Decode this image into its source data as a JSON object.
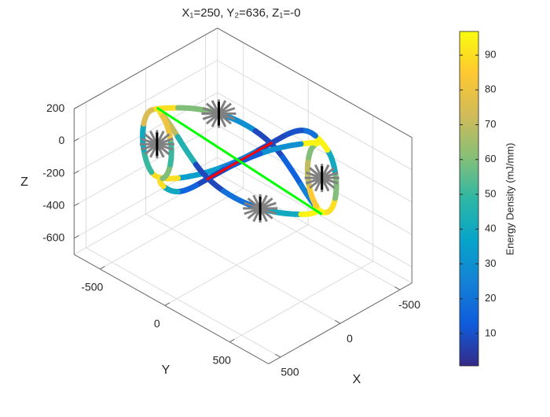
{
  "chart_data": {
    "type": "line3d",
    "title": "X₁=250, Y₂=636, Z₁=-0",
    "xlabel": "X",
    "ylabel": "Y",
    "zlabel": "Z",
    "xlim": [
      -600,
      600
    ],
    "ylim": [
      -700,
      800
    ],
    "zlim": [
      -700,
      200
    ],
    "xticks": [
      -500,
      0,
      500
    ],
    "yticks": [
      -500,
      0,
      500
    ],
    "zticks": [
      -600,
      -400,
      -200,
      0,
      200
    ],
    "grid": true,
    "curves": [
      {
        "x": [
          -25,
          -146,
          -248,
          -300,
          -248,
          -146,
          -25,
          -25,
          -25,
          -25,
          -25,
          -146,
          -248,
          -300,
          -248,
          -146,
          -25,
          -25,
          -25,
          -25
        ],
        "y": [
          -636,
          -424,
          -212,
          0,
          212,
          424,
          636,
          721,
          756,
          721,
          636,
          424,
          212,
          0,
          -212,
          -424,
          -636,
          -721,
          -756,
          -721
        ],
        "z": [
          -25,
          21,
          1,
          -67,
          -135,
          -155,
          -110,
          -44,
          115,
          274,
          340,
          265,
          123,
          -67,
          -257,
          -399,
          -475,
          -409,
          -250,
          -91
        ],
        "values": [
          90,
          60,
          30,
          8,
          15,
          25,
          95,
          90,
          60,
          40,
          95,
          20,
          10,
          8,
          25,
          35,
          90,
          50,
          40,
          75
        ]
      },
      {
        "x": [
          -25,
          96,
          198,
          250,
          198,
          96,
          -25,
          -25,
          -25,
          -25,
          -25,
          96,
          198,
          250,
          198,
          96,
          -25,
          -25,
          -25,
          -25
        ],
        "y": [
          -636,
          -424,
          -212,
          0,
          212,
          424,
          636,
          551,
          516,
          551,
          636,
          424,
          212,
          0,
          -212,
          -424,
          -636,
          -551,
          -516,
          -551
        ],
        "z": [
          -25,
          21,
          1,
          -67,
          -135,
          -155,
          -110,
          -44,
          115,
          274,
          340,
          265,
          123,
          -67,
          -257,
          -399,
          -475,
          -409,
          -250,
          -91
        ],
        "values": [
          90,
          70,
          45,
          8,
          20,
          40,
          95,
          85,
          70,
          60,
          95,
          30,
          12,
          8,
          15,
          40,
          90,
          60,
          50,
          80
        ]
      }
    ],
    "lines": [
      {
        "color": "#ff0000",
        "x": [
          -300,
          250
        ],
        "y": [
          0,
          0
        ],
        "z": [
          -67,
          -67
        ]
      },
      {
        "color": "#00ff00",
        "x": [
          -25,
          -25
        ],
        "y": [
          -636,
          636
        ],
        "z": [
          -25,
          -110
        ]
      }
    ],
    "markers": {
      "color": "#808080",
      "x": [
        -197,
        147,
        -25,
        -25
      ],
      "y": [
        -318,
        318,
        -636,
        636
      ],
      "z": [
        11,
        -145,
        -250,
        115
      ]
    },
    "colorbar": {
      "label": "Energy Density (mJ/mm)",
      "clim": [
        0.7,
        96.8
      ],
      "ticks": [
        10,
        20,
        30,
        40,
        50,
        60,
        70,
        80,
        90
      ],
      "colormap": [
        "#352a87",
        "#0f5cdd",
        "#1481d6",
        "#06a4ca",
        "#2eb7a4",
        "#87bf77",
        "#d1bb59",
        "#fec832",
        "#f9fb0e"
      ]
    }
  }
}
